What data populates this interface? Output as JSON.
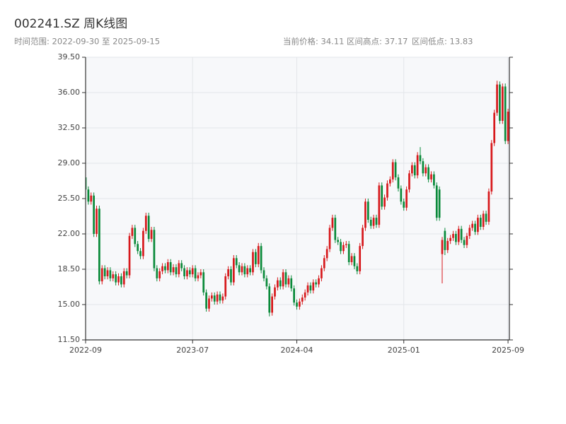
{
  "chart_data": {
    "type": "candlestick",
    "title": "002241.SZ 周K线图",
    "subtitle": "时间范围: 2022-09-30 至 2025-09-15",
    "stats": [
      "当前价格: 34.11",
      "区间高点: 37.17",
      "区间低点: 13.83"
    ],
    "up_color": "#d7191c",
    "down_color": "#0a8a3a",
    "grid": true,
    "ylim": [
      11.5,
      39.5
    ],
    "yticks": [
      {
        "value": 11.5,
        "label": "11.50"
      },
      {
        "value": 15,
        "label": "15.00"
      },
      {
        "value": 18.5,
        "label": "18.50"
      },
      {
        "value": 22,
        "label": "22.00"
      },
      {
        "value": 25.5,
        "label": "25.50"
      },
      {
        "value": 29,
        "label": "29.00"
      },
      {
        "value": 32.5,
        "label": "32.50"
      },
      {
        "value": 36,
        "label": "36.00"
      },
      {
        "value": 39.5,
        "label": "39.50"
      }
    ],
    "xlim": [
      0,
      154.5
    ],
    "xticks": [
      {
        "value": 0,
        "label": "2022-09"
      },
      {
        "value": 39,
        "label": "2023-07"
      },
      {
        "value": 77,
        "label": "2024-04"
      },
      {
        "value": 116,
        "label": "2025-01"
      },
      {
        "value": 154,
        "label": "2025-09"
      }
    ],
    "ohlc": [
      [
        27.6,
        27.9,
        26.1,
        26.4
      ],
      [
        26.4,
        26.7,
        24.9,
        25.2
      ],
      [
        25.2,
        26.1,
        24.9,
        25.8
      ],
      [
        25.8,
        26.1,
        21.7,
        22.0
      ],
      [
        22.0,
        24.8,
        21.7,
        24.5
      ],
      [
        24.5,
        24.8,
        17.0,
        17.3
      ],
      [
        17.3,
        18.9,
        17.0,
        18.6
      ],
      [
        18.6,
        18.9,
        17.5,
        17.8
      ],
      [
        17.8,
        18.7,
        17.5,
        18.4
      ],
      [
        18.4,
        18.7,
        17.3,
        17.6
      ],
      [
        17.6,
        18.3,
        17.3,
        18.0
      ],
      [
        18.0,
        18.3,
        16.9,
        17.2
      ],
      [
        17.2,
        18.1,
        16.9,
        17.8
      ],
      [
        17.8,
        18.1,
        16.7,
        17.0
      ],
      [
        17.0,
        18.6,
        16.7,
        18.3
      ],
      [
        18.3,
        18.6,
        17.6,
        17.9
      ],
      [
        17.9,
        22.1,
        17.6,
        21.8
      ],
      [
        21.8,
        22.9,
        21.5,
        22.6
      ],
      [
        22.6,
        22.9,
        20.7,
        21.0
      ],
      [
        21.0,
        21.3,
        20.0,
        20.3
      ],
      [
        20.3,
        20.6,
        19.5,
        19.8
      ],
      [
        19.8,
        22.6,
        19.5,
        22.3
      ],
      [
        22.3,
        24.1,
        22.0,
        23.8
      ],
      [
        23.8,
        24.1,
        21.2,
        21.5
      ],
      [
        21.5,
        22.7,
        21.2,
        22.4
      ],
      [
        22.4,
        22.7,
        18.3,
        18.6
      ],
      [
        18.6,
        18.9,
        17.3,
        17.6
      ],
      [
        17.6,
        18.6,
        17.3,
        18.3
      ],
      [
        18.3,
        19.1,
        18.0,
        18.8
      ],
      [
        18.8,
        19.1,
        18.1,
        18.4
      ],
      [
        18.4,
        19.5,
        18.1,
        19.2
      ],
      [
        19.2,
        19.5,
        17.9,
        18.2
      ],
      [
        18.2,
        19.0,
        17.9,
        18.7
      ],
      [
        18.7,
        19.0,
        17.7,
        18.0
      ],
      [
        18.0,
        19.4,
        17.7,
        19.1
      ],
      [
        19.1,
        19.4,
        18.3,
        18.6
      ],
      [
        18.6,
        18.9,
        17.5,
        17.8
      ],
      [
        17.8,
        18.7,
        17.5,
        18.4
      ],
      [
        18.4,
        18.7,
        17.7,
        18.0
      ],
      [
        18.0,
        18.9,
        17.7,
        18.6
      ],
      [
        18.6,
        18.9,
        17.3,
        17.6
      ],
      [
        17.6,
        18.2,
        17.3,
        17.9
      ],
      [
        17.9,
        18.5,
        17.6,
        18.2
      ],
      [
        18.2,
        18.5,
        15.9,
        16.2
      ],
      [
        16.2,
        16.5,
        14.3,
        14.6
      ],
      [
        14.6,
        15.9,
        14.3,
        15.6
      ],
      [
        15.6,
        16.2,
        15.3,
        15.9
      ],
      [
        15.9,
        16.2,
        15.0,
        15.3
      ],
      [
        15.3,
        16.3,
        15.0,
        16.0
      ],
      [
        16.0,
        16.3,
        15.1,
        15.4
      ],
      [
        15.4,
        16.1,
        15.1,
        15.8
      ],
      [
        15.8,
        18.1,
        15.5,
        17.8
      ],
      [
        17.8,
        18.8,
        17.5,
        18.5
      ],
      [
        18.5,
        18.8,
        16.9,
        17.2
      ],
      [
        17.2,
        19.9,
        16.9,
        19.6
      ],
      [
        19.6,
        19.9,
        18.6,
        18.9
      ],
      [
        18.9,
        19.2,
        17.9,
        18.2
      ],
      [
        18.2,
        19.1,
        17.9,
        18.8
      ],
      [
        18.8,
        19.1,
        17.7,
        18.0
      ],
      [
        18.0,
        18.9,
        17.7,
        18.6
      ],
      [
        18.6,
        18.9,
        17.9,
        18.2
      ],
      [
        18.2,
        20.5,
        17.9,
        20.2
      ],
      [
        20.2,
        20.5,
        18.7,
        19.0
      ],
      [
        19.0,
        21.1,
        18.7,
        20.8
      ],
      [
        20.8,
        21.1,
        18.1,
        18.4
      ],
      [
        18.4,
        18.7,
        17.3,
        17.6
      ],
      [
        17.6,
        17.9,
        16.5,
        16.8
      ],
      [
        16.8,
        17.1,
        13.83,
        14.2
      ],
      [
        14.2,
        16.1,
        13.9,
        15.8
      ],
      [
        15.8,
        17.0,
        15.5,
        16.7
      ],
      [
        16.7,
        17.7,
        16.4,
        17.4
      ],
      [
        17.4,
        17.7,
        16.5,
        16.8
      ],
      [
        16.8,
        18.5,
        16.5,
        18.2
      ],
      [
        18.2,
        18.5,
        16.7,
        17.0
      ],
      [
        17.0,
        17.9,
        16.7,
        17.6
      ],
      [
        17.6,
        17.9,
        16.3,
        16.6
      ],
      [
        16.6,
        16.9,
        14.9,
        15.2
      ],
      [
        15.2,
        15.5,
        14.5,
        14.8
      ],
      [
        14.8,
        15.6,
        14.5,
        15.3
      ],
      [
        15.3,
        16.0,
        15.0,
        15.7
      ],
      [
        15.7,
        16.5,
        15.4,
        16.2
      ],
      [
        16.2,
        17.2,
        15.9,
        16.9
      ],
      [
        16.9,
        17.2,
        16.1,
        16.4
      ],
      [
        16.4,
        17.5,
        16.1,
        17.2
      ],
      [
        17.2,
        17.5,
        16.7,
        17.0
      ],
      [
        17.0,
        17.9,
        16.7,
        17.6
      ],
      [
        17.6,
        18.9,
        17.3,
        18.6
      ],
      [
        18.6,
        19.9,
        18.3,
        19.6
      ],
      [
        19.6,
        20.8,
        19.3,
        20.5
      ],
      [
        20.5,
        22.9,
        20.2,
        22.6
      ],
      [
        22.6,
        23.9,
        22.3,
        23.6
      ],
      [
        23.6,
        23.9,
        21.1,
        21.4
      ],
      [
        21.4,
        21.7,
        20.9,
        21.2
      ],
      [
        21.2,
        21.5,
        20.0,
        20.3
      ],
      [
        20.3,
        21.2,
        20.0,
        20.9
      ],
      [
        20.9,
        21.3,
        20.6,
        21.0
      ],
      [
        21.0,
        21.3,
        18.9,
        19.2
      ],
      [
        19.2,
        20.1,
        18.9,
        19.8
      ],
      [
        19.8,
        20.1,
        18.5,
        18.8
      ],
      [
        18.8,
        19.1,
        18.0,
        18.3
      ],
      [
        18.3,
        21.1,
        18.0,
        20.8
      ],
      [
        20.8,
        22.9,
        20.5,
        22.6
      ],
      [
        22.6,
        25.5,
        22.3,
        25.2
      ],
      [
        25.2,
        25.5,
        23.1,
        23.4
      ],
      [
        23.4,
        23.7,
        22.5,
        22.8
      ],
      [
        22.8,
        23.9,
        22.5,
        23.6
      ],
      [
        23.6,
        23.9,
        22.6,
        22.9
      ],
      [
        22.9,
        27.1,
        22.6,
        26.8
      ],
      [
        26.8,
        27.1,
        24.4,
        24.7
      ],
      [
        24.7,
        25.9,
        24.4,
        25.6
      ],
      [
        25.6,
        27.3,
        25.3,
        27.0
      ],
      [
        27.0,
        27.7,
        26.7,
        27.4
      ],
      [
        27.4,
        29.4,
        27.1,
        29.1
      ],
      [
        29.1,
        29.4,
        27.3,
        27.6
      ],
      [
        27.6,
        27.9,
        26.2,
        26.5
      ],
      [
        26.5,
        26.8,
        24.9,
        25.2
      ],
      [
        25.2,
        25.5,
        24.3,
        24.6
      ],
      [
        24.6,
        26.7,
        24.3,
        26.4
      ],
      [
        26.4,
        28.3,
        26.1,
        28.0
      ],
      [
        28.0,
        29.1,
        27.7,
        28.8
      ],
      [
        28.8,
        29.1,
        27.5,
        27.8
      ],
      [
        27.8,
        30.1,
        27.5,
        29.8
      ],
      [
        29.8,
        30.6,
        28.9,
        29.2
      ],
      [
        29.2,
        29.5,
        27.7,
        28.0
      ],
      [
        28.0,
        28.9,
        27.7,
        28.6
      ],
      [
        28.6,
        28.9,
        27.1,
        27.4
      ],
      [
        27.4,
        28.2,
        27.1,
        27.9
      ],
      [
        27.9,
        28.2,
        26.5,
        26.8
      ],
      [
        26.8,
        27.1,
        23.3,
        23.6
      ],
      [
        26.4,
        26.7,
        23.3,
        23.6
      ],
      [
        20.0,
        21.7,
        17.1,
        21.4
      ],
      [
        22.3,
        22.6,
        19.9,
        20.4
      ],
      [
        20.4,
        21.6,
        20.1,
        21.3
      ],
      [
        21.3,
        21.9,
        21.0,
        21.6
      ],
      [
        21.6,
        22.3,
        21.3,
        22.0
      ],
      [
        22.0,
        22.3,
        20.9,
        21.2
      ],
      [
        21.2,
        22.8,
        20.9,
        22.5
      ],
      [
        22.5,
        22.8,
        21.1,
        21.4
      ],
      [
        21.4,
        21.7,
        20.6,
        20.9
      ],
      [
        20.9,
        22.1,
        20.6,
        21.8
      ],
      [
        21.8,
        22.9,
        21.5,
        22.6
      ],
      [
        22.6,
        23.3,
        22.3,
        23.0
      ],
      [
        23.0,
        23.3,
        21.9,
        22.2
      ],
      [
        22.2,
        23.9,
        21.9,
        23.6
      ],
      [
        23.6,
        23.9,
        22.4,
        22.7
      ],
      [
        22.7,
        24.3,
        22.4,
        24.0
      ],
      [
        24.0,
        24.3,
        22.9,
        23.2
      ],
      [
        23.2,
        26.5,
        22.9,
        26.2
      ],
      [
        26.2,
        31.3,
        25.9,
        31.0
      ],
      [
        31.0,
        34.3,
        30.7,
        34.0
      ],
      [
        34.0,
        37.17,
        33.7,
        36.8
      ],
      [
        36.8,
        37.1,
        32.9,
        33.2
      ],
      [
        33.2,
        36.9,
        32.9,
        36.6
      ],
      [
        36.6,
        36.9,
        30.9,
        31.2
      ],
      [
        31.2,
        34.4,
        30.9,
        34.11
      ]
    ]
  }
}
